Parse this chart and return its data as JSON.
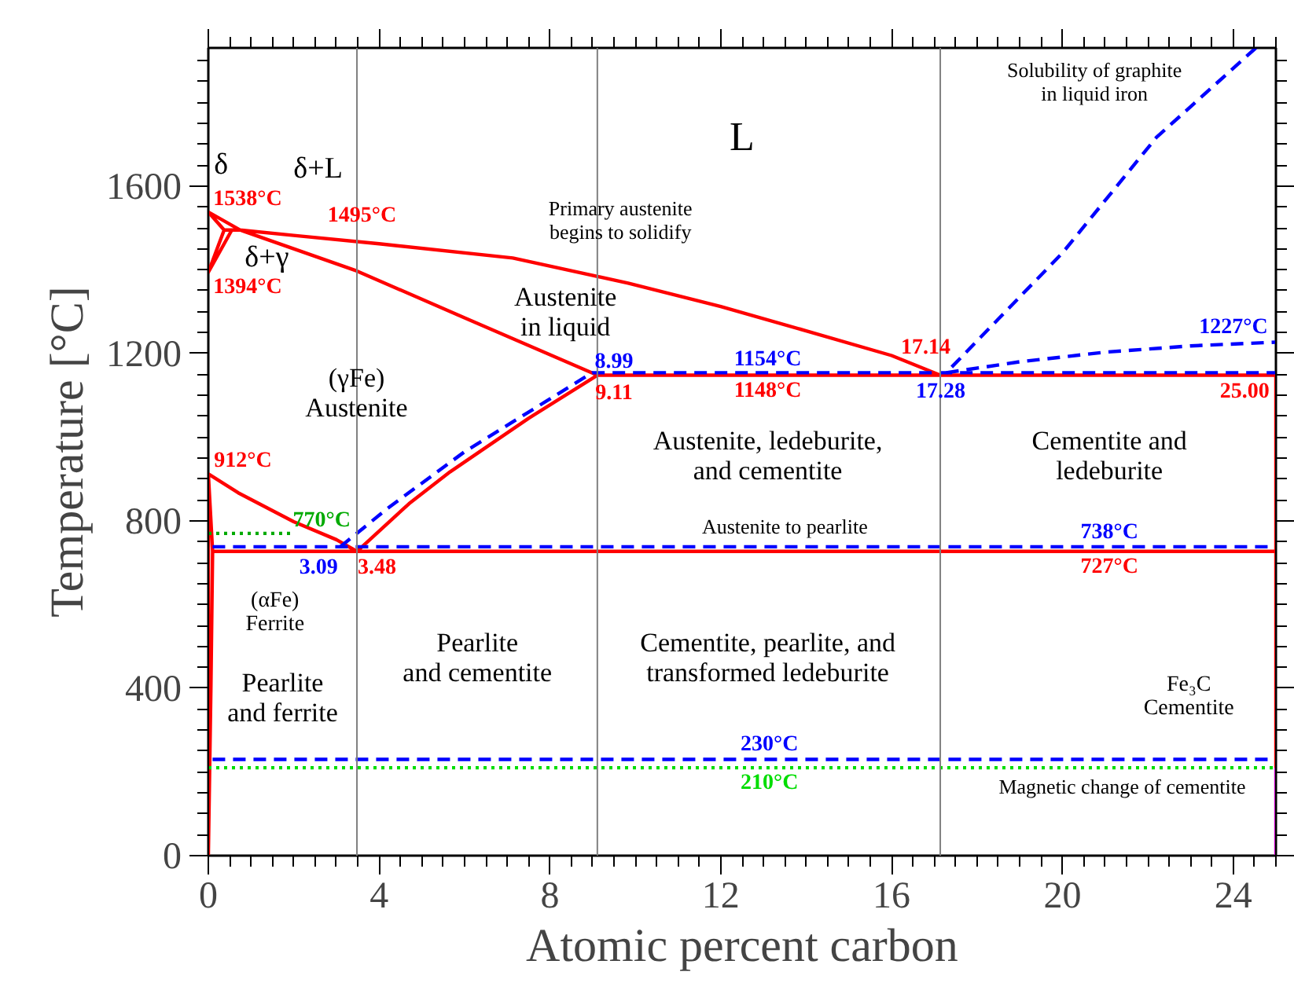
{
  "chart_data": {
    "type": "line",
    "xlabel": "Atomic percent carbon",
    "ylabel": "Temperature [°C]",
    "xlim": [
      0,
      25
    ],
    "ylim": [
      0,
      1930
    ],
    "xticks": [
      0,
      4,
      8,
      12,
      16,
      20,
      24
    ],
    "yticks": [
      0,
      400,
      800,
      1200,
      1600
    ],
    "series": [
      {
        "color": "#ff0000",
        "line_style": "solid",
        "x": [
          17.14,
          16,
          14,
          12,
          9.83,
          7.13,
          4,
          2,
          0.74,
          0,
          0.37,
          0,
          0.55,
          0.37,
          0.74,
          3.48,
          6,
          9.11,
          7.5,
          5.66,
          4.7,
          3.48,
          3,
          2,
          0.7,
          0,
          0.1,
          0.06,
          0,
          0,
          0.1,
          21.1,
          25,
          25,
          25,
          13.1,
          9.11
        ],
        "values": [
          1148,
          1195,
          1254,
          1312,
          1368,
          1428,
          1462,
          1482,
          1495,
          1538,
          1495,
          1394,
          1495,
          1495,
          1495,
          1397,
          1285,
          1148,
          1045,
          917,
          841,
          727,
          755,
          798,
          867,
          912,
          727,
          400,
          0,
          912,
          727,
          727,
          727,
          210,
          1148,
          1148,
          1148
        ],
        "value_labels": [
          null,
          null,
          null,
          null,
          null,
          null,
          null,
          null,
          null,
          "1538°C",
          null,
          "1394°C",
          null,
          null,
          null,
          null,
          null,
          null,
          null,
          null,
          null,
          null,
          null,
          null,
          null,
          "912°C",
          null,
          null,
          null,
          null,
          null,
          "727°C",
          null,
          null,
          null,
          "1148°C",
          null
        ]
      },
      {
        "color": "#cc00cc",
        "line_style": "solid",
        "x": [
          25,
          25
        ],
        "values": [
          0,
          210
        ]
      },
      {
        "color": "#0000ff",
        "line_style": "dashed",
        "x": [
          0.1,
          21.1,
          25
        ],
        "values": [
          738,
          738,
          738
        ],
        "value_labels": [
          null,
          "738°C",
          null
        ]
      },
      {
        "color": "#0000ff",
        "line_style": "dashed",
        "x": [
          3.09,
          4.2,
          6,
          8.99,
          13.1,
          25
        ],
        "values": [
          738,
          830,
          965,
          1154,
          1154,
          1154
        ],
        "value_labels": [
          null,
          null,
          null,
          null,
          "1154°C",
          null
        ]
      },
      {
        "color": "#0000ff",
        "line_style": "dashed",
        "x": [
          24.53,
          22.2,
          20,
          17.28,
          19,
          21,
          23,
          25
        ],
        "values": [
          1930,
          1716,
          1440,
          1154,
          1180,
          1203,
          1218,
          1227
        ],
        "value_labels": [
          null,
          null,
          null,
          null,
          null,
          null,
          null,
          "1227°C"
        ]
      },
      {
        "color": "#0000ff",
        "line_style": "dashed",
        "x": [
          0.1,
          13.14,
          25
        ],
        "values": [
          230,
          230,
          230
        ],
        "value_labels": [
          null,
          "230°C",
          null
        ]
      },
      {
        "color": "#00dd00",
        "line_style": "dotted",
        "x": [
          0,
          13.14,
          25
        ],
        "values": [
          210,
          210,
          210
        ],
        "value_labels": [
          null,
          "210°C",
          null
        ]
      },
      {
        "color": "#00aa00",
        "line_style": "dotted",
        "x": [
          0,
          1.92
        ],
        "values": [
          770,
          770
        ],
        "value_labels": [
          null,
          "770°C"
        ]
      }
    ],
    "ref_lines": [
      {
        "axis": "x",
        "value": 3.48,
        "color": "#808080"
      },
      {
        "axis": "x",
        "value": 9.11,
        "color": "#808080"
      },
      {
        "axis": "x",
        "value": 17.14,
        "color": "#808080"
      }
    ],
    "annotations": [
      "L",
      "Austenite\nin liquid",
      "(γFe)\nAustenite",
      "Austenite, ledeburite,\nand cementite",
      "Cementite and\nledeburite",
      "Pearlite\nand cementite",
      "Pearlite\nand ferrite",
      "Cementite, pearlite, and\ntransformed ledeburite",
      "(αFe)\nFerrite",
      "Fe₃C\nCementite",
      "δ+L",
      "δ",
      "δ+γ",
      "Primary austenite\nbegins to solidify",
      "Solubility of graphite\nin liquid iron",
      "Austenite to pearlite",
      "Magnetic change of cementite",
      "1495°C",
      "17.14",
      "3.48",
      "25.00",
      "9.11",
      "3.09",
      "8.99",
      "17.28"
    ]
  }
}
